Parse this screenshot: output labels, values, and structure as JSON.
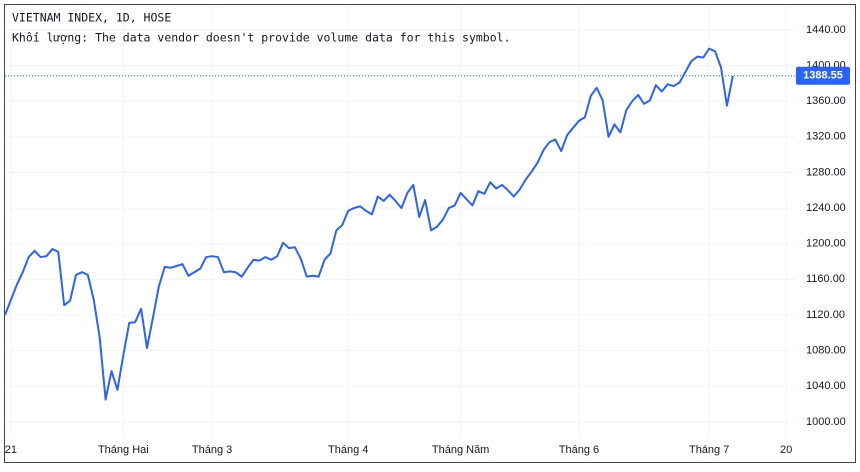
{
  "chart_data": {
    "type": "line",
    "title": "VIETNAM INDEX, 1D, HOSE",
    "subtitle": "Khối lượng: The data vendor doesn't provide volume data for this symbol.",
    "categories": [
      null,
      "21",
      null,
      null,
      null,
      null,
      null,
      null,
      null,
      null,
      null,
      null,
      null,
      null,
      null,
      null,
      null,
      null,
      null,
      null,
      "Tháng Hai",
      null,
      null,
      null,
      null,
      null,
      null,
      null,
      null,
      null,
      null,
      null,
      null,
      null,
      null,
      "Tháng 3",
      null,
      null,
      null,
      null,
      null,
      null,
      null,
      null,
      null,
      null,
      null,
      null,
      null,
      null,
      null,
      null,
      null,
      null,
      null,
      null,
      null,
      null,
      "Tháng 4",
      null,
      null,
      null,
      null,
      null,
      null,
      null,
      null,
      null,
      null,
      null,
      null,
      null,
      null,
      null,
      null,
      null,
      null,
      "Tháng Năm",
      null,
      null,
      null,
      null,
      null,
      null,
      null,
      null,
      null,
      null,
      null,
      null,
      null,
      null,
      null,
      null,
      null,
      null,
      null,
      "Tháng 6",
      null,
      null,
      null,
      null,
      null,
      null,
      null,
      null,
      null,
      null,
      null,
      null,
      null,
      null,
      null,
      null,
      null,
      null,
      null,
      null,
      null,
      "Tháng 7",
      null,
      null,
      null,
      null,
      null,
      null,
      null,
      null,
      null,
      null,
      null,
      null,
      "20",
      null
    ],
    "series": [
      {
        "color": "#2962ff",
        "values": [
          1120,
          1137,
          1154,
          1168,
          1185,
          1192,
          1185,
          1186,
          1194,
          1191,
          1131,
          1136,
          1165,
          1168,
          1165,
          1137,
          1095,
          1025,
          1057,
          1036,
          1075,
          1111,
          1112,
          1127,
          1083,
          1117,
          1152,
          1174,
          1173,
          1175,
          1177,
          1164,
          1168,
          1172,
          1185,
          1186,
          1185,
          1168,
          1169,
          1168,
          1163,
          1173,
          1182,
          1181,
          1185,
          1182,
          1186,
          1201,
          1195,
          1196,
          1183,
          1163,
          1164,
          1163,
          1182,
          1189,
          1215,
          1221,
          1237,
          1240,
          1242,
          1237,
          1233,
          1253,
          1248,
          1255,
          1248,
          1240,
          1257,
          1266,
          1230,
          1249,
          1215,
          1219,
          1227,
          1240,
          1243,
          1257,
          1250,
          1243,
          1259,
          1256,
          1269,
          1262,
          1266,
          1260,
          1253,
          1261,
          1272,
          1281,
          1291,
          1305,
          1314,
          1317,
          1304,
          1322,
          1330,
          1338,
          1342,
          1366,
          1375,
          1361,
          1320,
          1334,
          1325,
          1350,
          1360,
          1367,
          1357,
          1361,
          1378,
          1371,
          1379,
          1377,
          1381,
          1393,
          1405,
          1410,
          1409,
          1419,
          1416,
          1398,
          1355,
          1388.55,
          null,
          null,
          null,
          null,
          null,
          null,
          null,
          null,
          null,
          null
        ]
      }
    ],
    "ylim": [
      983,
      1468
    ],
    "yticks": [
      {
        "value": 1000,
        "label": "1000.00"
      },
      {
        "value": 1040,
        "label": "1040.00"
      },
      {
        "value": 1080,
        "label": "1080.00"
      },
      {
        "value": 1120,
        "label": "1120.00"
      },
      {
        "value": 1160,
        "label": "1160.00"
      },
      {
        "value": 1200,
        "label": "1200.00"
      },
      {
        "value": 1240,
        "label": "1240.00"
      },
      {
        "value": 1280,
        "label": "1280.00"
      },
      {
        "value": 1320,
        "label": "1320.00"
      },
      {
        "value": 1360,
        "label": "1360.00"
      },
      {
        "value": 1400,
        "label": "1400.00"
      },
      {
        "value": 1440,
        "label": "1440.00"
      }
    ],
    "grid": true
  }
}
